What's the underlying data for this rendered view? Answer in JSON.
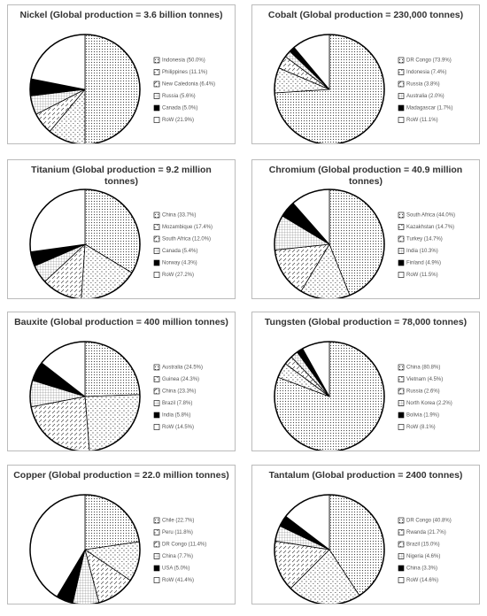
{
  "chart_data": [
    {
      "type": "pie",
      "title": "Nickel (Global production = 3.6 billion tonnes)",
      "categories": [
        "Indonesia (50.0%)",
        "Philippines (11.1%)",
        "New Caledonia (6.4%)",
        "Russia (5.6%)",
        "Canada (5.0%)",
        "RoW (21.9%)"
      ],
      "values": [
        50.0,
        11.1,
        6.4,
        5.6,
        5.0,
        21.9
      ]
    },
    {
      "type": "pie",
      "title": "Cobalt (Global production = 230,000 tonnes)",
      "categories": [
        "DR Congo (73.9%)",
        "Indonesia (7.4%)",
        "Russia (3.8%)",
        "Australia (2.0%)",
        "Madagascar (1.7%)",
        "RoW (11.1%)"
      ],
      "values": [
        73.9,
        7.4,
        3.8,
        2.0,
        1.7,
        11.1
      ]
    },
    {
      "type": "pie",
      "title": "Titanium (Global production = 9.2 million tonnes)",
      "categories": [
        "China (33.7%)",
        "Mozambique (17.4%)",
        "South Africa (12.0%)",
        "Canada (5.4%)",
        "Norway (4.3%)",
        "RoW (27.2%)"
      ],
      "values": [
        33.7,
        17.4,
        12.0,
        5.4,
        4.3,
        27.2
      ]
    },
    {
      "type": "pie",
      "title": "Chromium (Global production = 40.9 million tonnes)",
      "categories": [
        "South Africa (44.0%)",
        "Kazakhstan (14.7%)",
        "Turkey (14.7%)",
        "India (10.3%)",
        "Finland (4.9%)",
        "RoW (11.5%)"
      ],
      "values": [
        44.0,
        14.7,
        14.7,
        10.3,
        4.9,
        11.5
      ]
    },
    {
      "type": "pie",
      "title": "Bauxite (Global production = 400 million tonnes)",
      "categories": [
        "Australia (24.5%)",
        "Guinea (24.3%)",
        "China (23.3%)",
        "Brazil (7.8%)",
        "India (5.8%)",
        "RoW (14.5%)"
      ],
      "values": [
        24.5,
        24.3,
        23.3,
        7.8,
        5.8,
        14.5
      ]
    },
    {
      "type": "pie",
      "title": "Tungsten (Global production = 78,000 tonnes)",
      "categories": [
        "China (80.8%)",
        "Vietnam (4.5%)",
        "Russia (2.6%)",
        "North Korea (2.2%)",
        "Bolivia (1.9%)",
        "RoW (8.1%)"
      ],
      "values": [
        80.8,
        4.5,
        2.6,
        2.2,
        1.9,
        8.1
      ]
    },
    {
      "type": "pie",
      "title": "Copper (Global production = 22.0 million tonnes)",
      "categories": [
        "Chile (22.7%)",
        "Peru (11.8%)",
        "DR Congo (11.4%)",
        "China (7.7%)",
        "USA (5.0%)",
        "RoW (41.4%)"
      ],
      "values": [
        22.7,
        11.8,
        11.4,
        7.7,
        5.0,
        41.4
      ]
    },
    {
      "type": "pie",
      "title": "Tantalum (Global production = 2400 tonnes)",
      "categories": [
        "DR Congo (40.8%)",
        "Rwanda (21.7%)",
        "Brazil (15.0%)",
        "Nigeria (4.6%)",
        "China (3.3%)",
        "RoW (14.6%)"
      ],
      "values": [
        40.8,
        21.7,
        15.0,
        4.6,
        3.3,
        14.6
      ]
    }
  ]
}
